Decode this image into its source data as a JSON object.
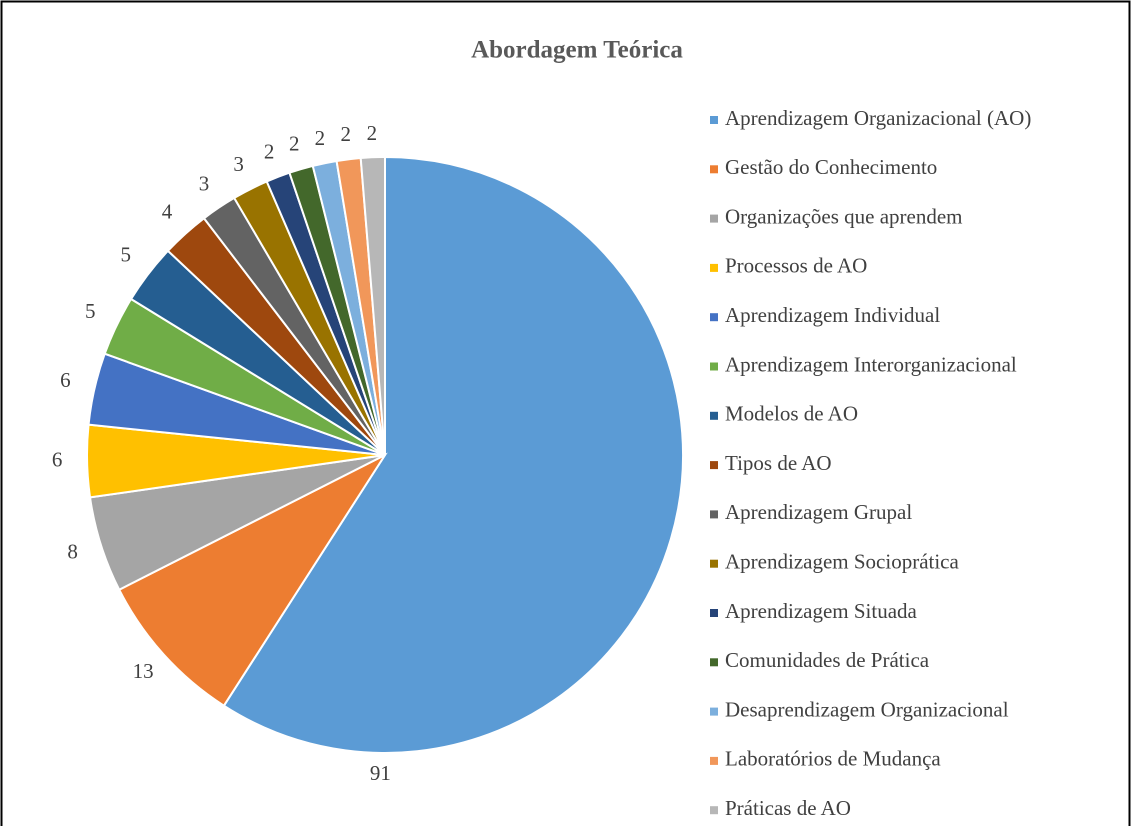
{
  "chart_data": {
    "type": "pie",
    "title": "Abordagem Teórica",
    "categories": [
      "Aprendizagem Organizacional (AO)",
      "Gestão do Conhecimento",
      "Organizações que aprendem",
      "Processos de AO",
      "Aprendizagem Individual",
      "Aprendizagem Interorganizacional",
      "Modelos de AO",
      "Tipos de AO",
      "Aprendizagem Grupal",
      "Aprendizagem Socioprática",
      "Aprendizagem Situada",
      "Comunidades de Prática",
      "Desaprendizagem Organizacional",
      "Laboratórios de Mudança",
      "Práticas de AO"
    ],
    "values": [
      91,
      13,
      8,
      6,
      6,
      5,
      5,
      4,
      3,
      3,
      2,
      2,
      2,
      2,
      2
    ],
    "colors": [
      "#5b9bd5",
      "#ed7d31",
      "#a5a5a5",
      "#ffc000",
      "#4472c4",
      "#70ad47",
      "#255e91",
      "#9e480e",
      "#636363",
      "#997300",
      "#264478",
      "#43682b",
      "#7cafdd",
      "#f1975a",
      "#b7b7b7"
    ],
    "legend": "right"
  }
}
